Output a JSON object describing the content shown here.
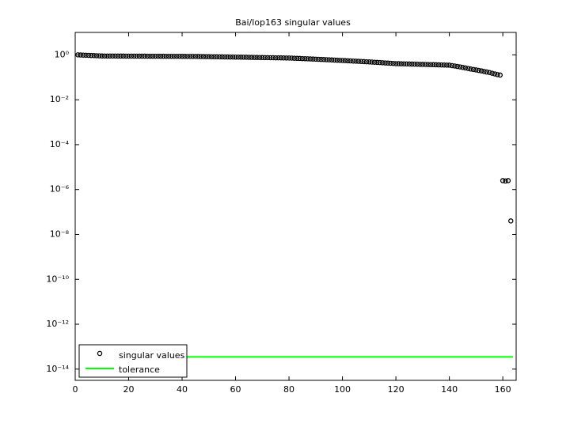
{
  "chart_data": {
    "type": "scatter",
    "title": "Bai/lop163 singular values",
    "log_y": true,
    "legend": "lower left",
    "x": [
      1,
      2,
      3,
      4,
      5,
      6,
      7,
      8,
      9,
      10,
      11,
      12,
      13,
      14,
      15,
      16,
      17,
      18,
      19,
      20,
      21,
      22,
      23,
      24,
      25,
      26,
      27,
      28,
      29,
      30,
      31,
      32,
      33,
      34,
      35,
      36,
      37,
      38,
      39,
      40,
      41,
      42,
      43,
      44,
      45,
      46,
      47,
      48,
      49,
      50,
      51,
      52,
      53,
      54,
      55,
      56,
      57,
      58,
      59,
      60,
      61,
      62,
      63,
      64,
      65,
      66,
      67,
      68,
      69,
      70,
      71,
      72,
      73,
      74,
      75,
      76,
      77,
      78,
      79,
      80,
      81,
      82,
      83,
      84,
      85,
      86,
      87,
      88,
      89,
      90,
      91,
      92,
      93,
      94,
      95,
      96,
      97,
      98,
      99,
      100,
      101,
      102,
      103,
      104,
      105,
      106,
      107,
      108,
      109,
      110,
      111,
      112,
      113,
      114,
      115,
      116,
      117,
      118,
      119,
      120,
      121,
      122,
      123,
      124,
      125,
      126,
      127,
      128,
      129,
      130,
      131,
      132,
      133,
      134,
      135,
      136,
      137,
      138,
      139,
      140,
      141,
      142,
      143,
      144,
      145,
      146,
      147,
      148,
      149,
      150,
      151,
      152,
      153,
      154,
      155,
      156,
      157,
      158,
      159,
      160,
      161,
      162,
      163
    ],
    "series": [
      {
        "name": "singular values",
        "color": "#000000",
        "marker": "circle",
        "values": [
          1.0,
          0.987,
          0.975,
          0.963,
          0.951,
          0.94,
          0.928,
          0.917,
          0.906,
          0.891,
          0.89,
          0.889,
          0.888,
          0.887,
          0.886,
          0.885,
          0.883,
          0.882,
          0.881,
          0.88,
          0.879,
          0.878,
          0.877,
          0.875,
          0.874,
          0.873,
          0.872,
          0.871,
          0.87,
          0.869,
          0.868,
          0.867,
          0.865,
          0.864,
          0.863,
          0.862,
          0.861,
          0.86,
          0.859,
          0.858,
          0.857,
          0.855,
          0.854,
          0.853,
          0.851,
          0.847,
          0.844,
          0.84,
          0.836,
          0.833,
          0.829,
          0.826,
          0.822,
          0.818,
          0.815,
          0.811,
          0.807,
          0.804,
          0.8,
          0.796,
          0.793,
          0.789,
          0.786,
          0.782,
          0.778,
          0.775,
          0.771,
          0.767,
          0.764,
          0.76,
          0.756,
          0.753,
          0.749,
          0.746,
          0.742,
          0.738,
          0.735,
          0.731,
          0.727,
          0.724,
          0.716,
          0.708,
          0.7,
          0.692,
          0.684,
          0.676,
          0.667,
          0.659,
          0.651,
          0.643,
          0.635,
          0.627,
          0.619,
          0.611,
          0.603,
          0.594,
          0.586,
          0.578,
          0.57,
          0.562,
          0.554,
          0.546,
          0.539,
          0.531,
          0.523,
          0.516,
          0.508,
          0.5,
          0.492,
          0.485,
          0.477,
          0.469,
          0.461,
          0.454,
          0.446,
          0.438,
          0.43,
          0.423,
          0.415,
          0.407,
          0.404,
          0.401,
          0.398,
          0.395,
          0.392,
          0.389,
          0.386,
          0.383,
          0.38,
          0.377,
          0.374,
          0.371,
          0.368,
          0.365,
          0.362,
          0.359,
          0.356,
          0.353,
          0.35,
          0.347,
          0.333,
          0.319,
          0.305,
          0.291,
          0.276,
          0.262,
          0.248,
          0.234,
          0.224,
          0.214,
          0.203,
          0.193,
          0.183,
          0.173,
          0.163,
          0.152,
          0.142,
          0.132,
          0.126,
          2.5e-06,
          2.4e-06,
          2.5e-06,
          4e-08
        ]
      }
    ],
    "tolerance": {
      "name": "tolerance",
      "color": "#00ff00",
      "value": 3.5e-14
    },
    "xlim": [
      0,
      165
    ],
    "xticks": [
      0,
      20,
      40,
      60,
      80,
      100,
      120,
      140,
      160
    ],
    "ylim": [
      3.16e-15,
      10
    ],
    "yticks": [
      {
        "value": 1,
        "label": "10⁰"
      },
      {
        "value": 0.01,
        "label": "10⁻²"
      },
      {
        "value": 0.0001,
        "label": "10⁻⁴"
      },
      {
        "value": 1e-06,
        "label": "10⁻⁶"
      },
      {
        "value": 1e-08,
        "label": "10⁻⁸"
      },
      {
        "value": 1e-10,
        "label": "10⁻¹⁰"
      },
      {
        "value": 1e-12,
        "label": "10⁻¹²"
      },
      {
        "value": 1e-14,
        "label": "10⁻¹⁴"
      }
    ]
  }
}
